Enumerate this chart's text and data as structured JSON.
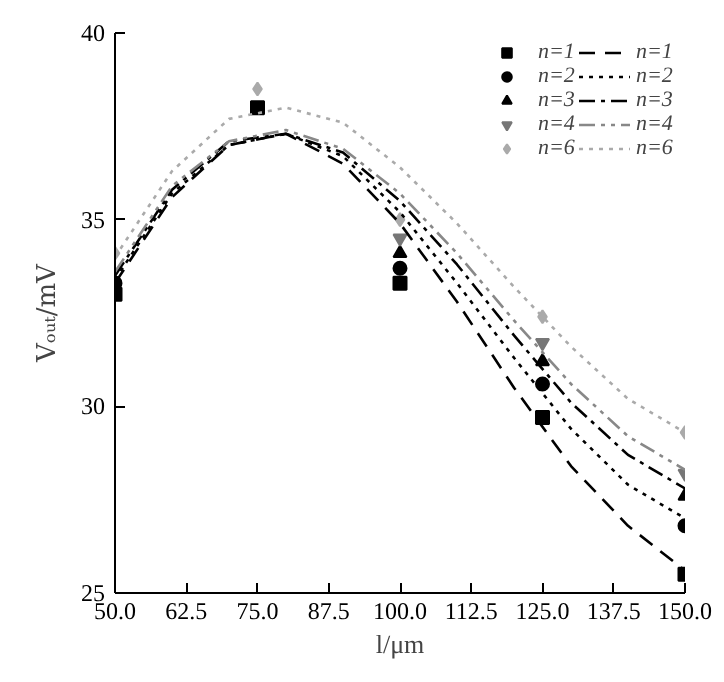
{
  "chart_data": {
    "type": "scatter",
    "xlabel": "l/μm",
    "ylabel": "Vₒᵤₜ/mV",
    "xlim": [
      50,
      150
    ],
    "ylim": [
      25,
      40
    ],
    "xticks": [
      {
        "value": 50,
        "label": "50.0"
      },
      {
        "value": 62.5,
        "label": "62.5"
      },
      {
        "value": 75,
        "label": "75.0"
      },
      {
        "value": 87.5,
        "label": "87.5"
      },
      {
        "value": 100,
        "label": "100.0"
      },
      {
        "value": 112.5,
        "label": "112.5"
      },
      {
        "value": 125,
        "label": "125.0"
      },
      {
        "value": 137.5,
        "label": "137.5"
      },
      {
        "value": 150,
        "label": "150.0"
      }
    ],
    "yticks": [
      25,
      30,
      35,
      40
    ],
    "grid": false,
    "legend": "top right",
    "x": [
      50,
      75,
      100,
      125,
      150
    ],
    "series": [
      {
        "name": "n=1",
        "marker": "square",
        "color": "#000000",
        "values": [
          33.0,
          38.0,
          33.3,
          29.7,
          25.5
        ]
      },
      {
        "name": "n=2",
        "marker": "circle",
        "color": "#000000",
        "values": [
          33.3,
          null,
          33.7,
          30.6,
          26.8
        ]
      },
      {
        "name": "n=3",
        "marker": "triangle",
        "color": "#000000",
        "values": [
          null,
          null,
          34.1,
          31.2,
          27.6
        ]
      },
      {
        "name": "n=4",
        "marker": "triangle_down",
        "color": "#777777",
        "values": [
          null,
          null,
          34.5,
          31.7,
          28.2
        ]
      },
      {
        "name": "n=6",
        "marker": "diamond",
        "color": "#aaaaaa",
        "values": [
          34.1,
          38.5,
          35.0,
          32.4,
          29.3
        ]
      },
      {
        "name": "n=1",
        "type": "line",
        "line_style": "dashed",
        "color": "#000000",
        "x": [
          50,
          60,
          70,
          80,
          90,
          100,
          110,
          120,
          130,
          140,
          150
        ],
        "values": [
          33.3,
          35.6,
          37.0,
          37.3,
          36.5,
          34.9,
          32.8,
          30.5,
          28.4,
          26.8,
          25.6
        ]
      },
      {
        "name": "n=2",
        "type": "line",
        "line_style": "dotted",
        "color": "#000000",
        "x": [
          50,
          60,
          70,
          80,
          90,
          100,
          110,
          120,
          130,
          140,
          150
        ],
        "values": [
          33.4,
          35.7,
          37.0,
          37.3,
          36.7,
          35.2,
          33.3,
          31.3,
          29.4,
          27.9,
          27.0
        ]
      },
      {
        "name": "n=3",
        "type": "line",
        "line_style": "dashdot",
        "color": "#000000",
        "x": [
          50,
          60,
          70,
          80,
          90,
          100,
          110,
          120,
          130,
          140,
          150
        ],
        "values": [
          33.5,
          35.8,
          37.1,
          37.3,
          36.8,
          35.5,
          33.8,
          31.9,
          30.1,
          28.7,
          27.8
        ]
      },
      {
        "name": "n=4",
        "type": "line",
        "line_style": "dashdotdot",
        "color": "#888888",
        "x": [
          50,
          60,
          70,
          80,
          90,
          100,
          110,
          120,
          130,
          140,
          150
        ],
        "values": [
          33.6,
          35.9,
          37.1,
          37.4,
          36.9,
          35.7,
          34.1,
          32.3,
          30.6,
          29.2,
          28.3
        ]
      },
      {
        "name": "n=6",
        "type": "line",
        "line_style": "dotted",
        "color": "#aaaaaa",
        "x": [
          50,
          60,
          70,
          80,
          90,
          100,
          110,
          120,
          130,
          140,
          150
        ],
        "values": [
          34.0,
          36.3,
          37.7,
          38.0,
          37.6,
          36.4,
          34.9,
          33.2,
          31.6,
          30.2,
          29.3
        ]
      }
    ]
  }
}
